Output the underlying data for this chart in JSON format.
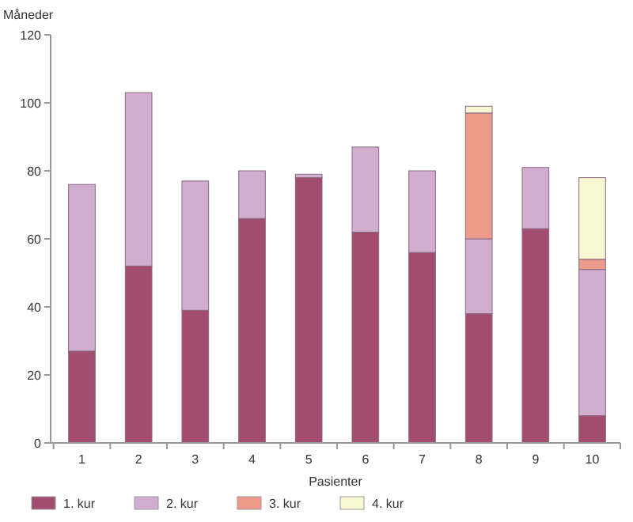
{
  "chart_data": {
    "type": "bar",
    "ylabel": "Måneder",
    "xlabel": "Pasienter",
    "categories": [
      "1",
      "2",
      "3",
      "4",
      "5",
      "6",
      "7",
      "8",
      "9",
      "10"
    ],
    "stacked": true,
    "legend": "bottom",
    "grid": false,
    "ylim": [
      0,
      120
    ],
    "yticks": [
      0,
      20,
      40,
      60,
      80,
      100,
      120
    ],
    "series": [
      {
        "name": "1. kur",
        "color": "#a24d70",
        "values": [
          27,
          52,
          39,
          66,
          78,
          62,
          56,
          38,
          63,
          8
        ]
      },
      {
        "name": "2. kur",
        "color": "#d1aecf",
        "values": [
          49,
          51,
          38,
          14,
          1,
          25,
          24,
          22,
          18,
          43
        ]
      },
      {
        "name": "3. kur",
        "color": "#ee9a8b",
        "values": [
          null,
          null,
          null,
          null,
          null,
          null,
          null,
          37,
          null,
          3
        ]
      },
      {
        "name": "4. kur",
        "color": "#f7f7d2",
        "values": [
          null,
          null,
          null,
          null,
          null,
          null,
          null,
          2,
          null,
          24
        ]
      }
    ]
  }
}
